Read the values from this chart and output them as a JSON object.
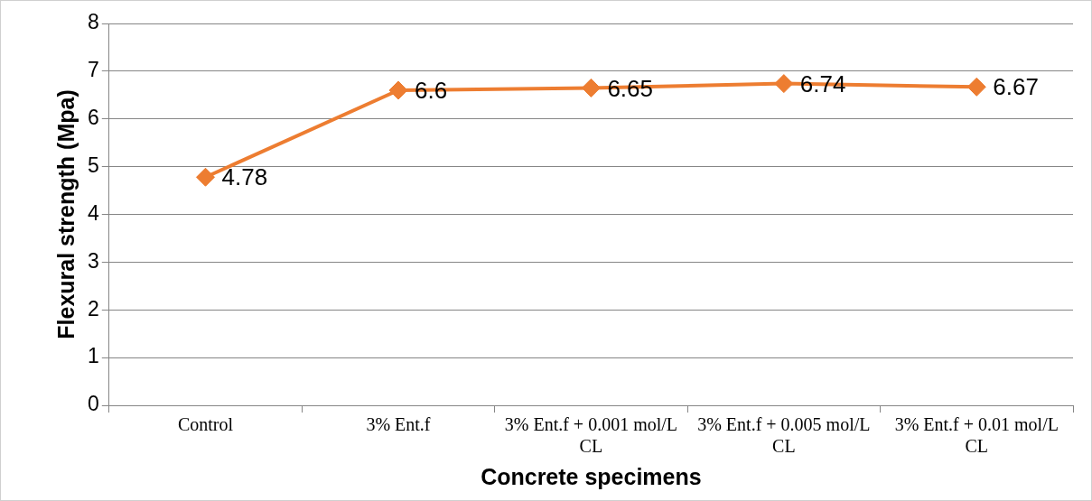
{
  "chart_data": {
    "type": "line",
    "xlabel": "Concrete specimens",
    "ylabel": "Flexural strength (Mpa)",
    "categories": [
      "Control",
      "3% Ent.f",
      "3% Ent.f + 0.001 mol/L CL",
      "3% Ent.f + 0.005 mol/L CL",
      "3% Ent.f + 0.01 mol/L CL"
    ],
    "values": [
      4.78,
      6.6,
      6.65,
      6.74,
      6.67
    ],
    "color": "#ed7d31",
    "ylim": [
      0,
      8
    ],
    "yticks": [
      0,
      1,
      2,
      3,
      4,
      5,
      6,
      7,
      8
    ],
    "grid": "y",
    "legend": false,
    "marker": "diamond",
    "line_style": "solid",
    "data_labels": true
  }
}
